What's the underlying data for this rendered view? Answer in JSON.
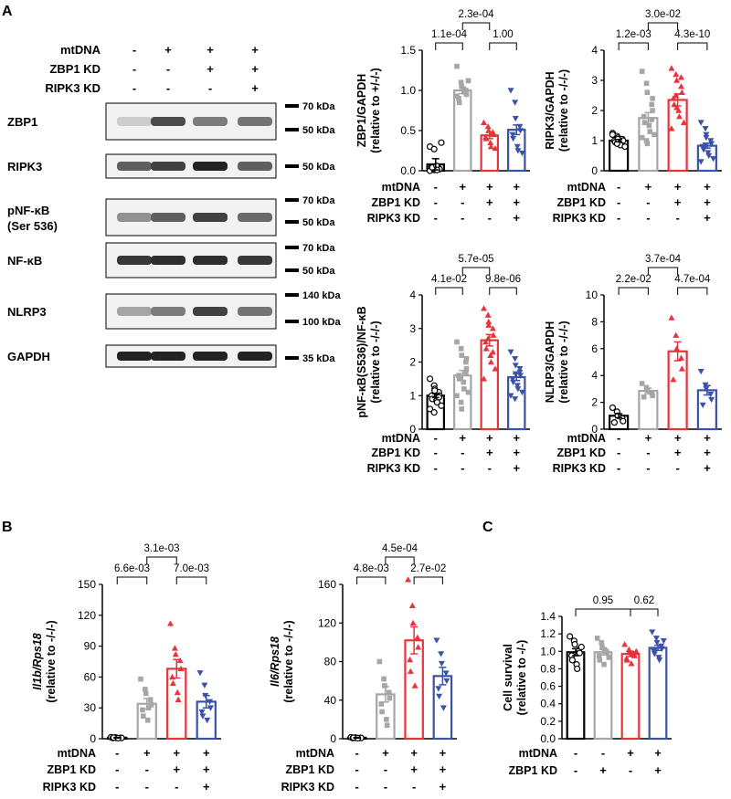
{
  "panel_letters": [
    "A",
    "B",
    "C"
  ],
  "blot": {
    "rows": [
      {
        "label": "mtDNA",
        "signs": [
          "-",
          "+",
          "+",
          "+"
        ]
      },
      {
        "label": "ZBP1 KD",
        "signs": [
          "-",
          "-",
          "+",
          "+"
        ]
      },
      {
        "label": "RIPK3 KD",
        "signs": [
          "-",
          "-",
          "-",
          "+"
        ]
      }
    ],
    "bands": [
      {
        "name": "ZBP1",
        "name2": "",
        "markers": [
          "70 kDa",
          "50 kDa"
        ],
        "intensity": [
          0.15,
          0.8,
          0.55,
          0.6
        ]
      },
      {
        "name": "RIPK3",
        "name2": "",
        "markers": [
          "50 kDa"
        ],
        "intensity": [
          0.7,
          0.85,
          1.0,
          0.7
        ]
      },
      {
        "name": "pNF-κB",
        "name2": "(Ser 536)",
        "markers": [
          "70 kDa",
          "50 kDa"
        ],
        "intensity": [
          0.45,
          0.7,
          0.85,
          0.65
        ]
      },
      {
        "name": "NF-κB",
        "name2": "",
        "markers": [
          "70 kDa",
          "50 kDa"
        ],
        "intensity": [
          0.9,
          0.95,
          0.95,
          0.9
        ]
      },
      {
        "name": "NLRP3",
        "name2": "",
        "markers": [
          "140 kDa",
          "100 kDa"
        ],
        "intensity": [
          0.35,
          0.55,
          0.85,
          0.6
        ]
      },
      {
        "name": "GAPDH",
        "name2": "",
        "markers": [
          "35 kDa"
        ],
        "intensity": [
          1.0,
          1.0,
          1.0,
          1.0
        ]
      }
    ]
  },
  "group_colors": [
    "#000000",
    "#a6a6a6",
    "#e8333a",
    "#3a52a8"
  ],
  "chart_data": [
    {
      "type": "bar",
      "panel": "A",
      "ylabel_lines": [
        "ZBP1/GAPDH",
        "(relative to +/-/-)"
      ],
      "ylim": [
        0,
        1.5
      ],
      "yticks": [
        "0.0",
        "0.5",
        "1.0",
        "1.5"
      ],
      "categories": [
        "g1",
        "g2",
        "g3",
        "g4"
      ],
      "values": [
        0.08,
        1.0,
        0.44,
        0.51
      ],
      "errors": [
        0.07,
        0.04,
        0.04,
        0.06
      ],
      "points": [
        [
          0.0,
          0.01,
          0.02,
          0.03,
          0.02,
          0.05,
          0.04,
          0.06,
          0.01,
          0.35,
          0.3,
          0.27
        ],
        [
          1.3,
          1.1,
          1.05,
          1.0,
          0.95,
          0.9,
          0.85,
          1.02,
          0.98,
          1.12,
          0.93
        ],
        [
          0.6,
          0.55,
          0.5,
          0.48,
          0.45,
          0.42,
          0.4,
          0.35,
          0.3,
          0.28
        ],
        [
          1.0,
          0.85,
          0.65,
          0.55,
          0.5,
          0.45,
          0.4,
          0.3,
          0.25,
          0.22
        ]
      ],
      "markers": [
        "circle-open",
        "square",
        "triangle-up",
        "triangle-down"
      ],
      "comparisons": [
        {
          "from": 0,
          "to": 1,
          "label": "1.1e-04",
          "level": 0
        },
        {
          "from": 2,
          "to": 3,
          "label": "1.00",
          "level": 0
        },
        {
          "from": 1,
          "to": 2,
          "label": "2.3e-04",
          "level": 1
        }
      ],
      "rows": [
        {
          "label": "mtDNA",
          "signs": [
            "-",
            "+",
            "+",
            "+"
          ]
        },
        {
          "label": "ZBP1 KD",
          "signs": [
            "-",
            "-",
            "+",
            "+"
          ]
        },
        {
          "label": "RIPK3 KD",
          "signs": [
            "-",
            "-",
            "-",
            "+"
          ]
        }
      ]
    },
    {
      "type": "bar",
      "panel": "A",
      "ylabel_lines": [
        "RIPK3/GAPDH",
        "(relative to -/-/-)"
      ],
      "ylim": [
        0,
        4
      ],
      "yticks": [
        "0",
        "1",
        "2",
        "3",
        "4"
      ],
      "categories": [
        "g1",
        "g2",
        "g3",
        "g4"
      ],
      "values": [
        1.0,
        1.75,
        2.35,
        0.83
      ],
      "errors": [
        0.04,
        0.18,
        0.2,
        0.08
      ],
      "points": [
        [
          1.25,
          1.15,
          1.1,
          1.05,
          1.0,
          1.0,
          0.95,
          0.9,
          0.85,
          0.8,
          1.2,
          0.9,
          1.05
        ],
        [
          3.3,
          2.9,
          2.6,
          2.2,
          2.0,
          1.8,
          1.6,
          1.5,
          1.3,
          1.2,
          1.1,
          1.0,
          0.9,
          1.7,
          2.4
        ],
        [
          3.4,
          3.2,
          3.0,
          2.8,
          2.6,
          2.4,
          2.2,
          2.0,
          1.8,
          1.6,
          1.4,
          2.5,
          2.1,
          3.1
        ],
        [
          1.6,
          1.4,
          1.2,
          1.0,
          0.9,
          0.8,
          0.7,
          0.6,
          0.5,
          0.4,
          0.3,
          0.85,
          1.1
        ]
      ],
      "markers": [
        "circle-open",
        "square",
        "triangle-up",
        "triangle-down"
      ],
      "comparisons": [
        {
          "from": 0,
          "to": 1,
          "label": "1.2e-03",
          "level": 0
        },
        {
          "from": 2,
          "to": 3,
          "label": "4.3e-10",
          "level": 0
        },
        {
          "from": 1,
          "to": 2,
          "label": "3.0e-02",
          "level": 1
        }
      ],
      "rows": [
        {
          "label": "mtDNA",
          "signs": [
            "-",
            "+",
            "+",
            "+"
          ]
        },
        {
          "label": "ZBP1 KD",
          "signs": [
            "-",
            "-",
            "+",
            "+"
          ]
        },
        {
          "label": "RIPK3 KD",
          "signs": [
            "-",
            "-",
            "-",
            "+"
          ]
        }
      ]
    },
    {
      "type": "bar",
      "panel": "A",
      "ylabel_lines": [
        "pNF-κB(S536)/NF-κB",
        "(relative to -/-/-)"
      ],
      "ylim": [
        0,
        4
      ],
      "yticks": [
        "0",
        "1",
        "2",
        "3",
        "4"
      ],
      "categories": [
        "g1",
        "g2",
        "g3",
        "g4"
      ],
      "values": [
        1.0,
        1.6,
        2.65,
        1.55
      ],
      "errors": [
        0.06,
        0.15,
        0.17,
        0.1
      ],
      "points": [
        [
          1.5,
          1.3,
          1.2,
          1.1,
          1.0,
          1.0,
          0.9,
          0.85,
          0.8,
          0.7,
          0.6,
          0.5,
          1.15,
          0.95
        ],
        [
          2.6,
          2.4,
          2.2,
          2.0,
          1.8,
          1.6,
          1.5,
          1.4,
          1.2,
          1.1,
          1.0,
          0.8,
          0.6,
          1.7,
          2.1
        ],
        [
          3.6,
          3.4,
          3.2,
          3.0,
          2.8,
          2.6,
          2.4,
          2.2,
          2.0,
          1.8,
          1.5,
          2.7,
          3.1,
          2.3
        ],
        [
          2.3,
          2.1,
          1.9,
          1.8,
          1.6,
          1.5,
          1.4,
          1.3,
          1.2,
          1.1,
          1.0,
          0.9,
          1.65,
          1.7
        ]
      ],
      "markers": [
        "circle-open",
        "square",
        "triangle-up",
        "triangle-down"
      ],
      "comparisons": [
        {
          "from": 0,
          "to": 1,
          "label": "4.1e-02",
          "level": 0
        },
        {
          "from": 2,
          "to": 3,
          "label": "9.8e-06",
          "level": 0
        },
        {
          "from": 1,
          "to": 2,
          "label": "5.7e-05",
          "level": 1
        }
      ],
      "rows": [
        {
          "label": "mtDNA",
          "signs": [
            "-",
            "+",
            "+",
            "+"
          ]
        },
        {
          "label": "ZBP1 KD",
          "signs": [
            "-",
            "-",
            "+",
            "+"
          ]
        },
        {
          "label": "RIPK3 KD",
          "signs": [
            "-",
            "-",
            "-",
            "+"
          ]
        }
      ]
    },
    {
      "type": "bar",
      "panel": "A",
      "ylabel_lines": [
        "NLRP3/GAPDH",
        "(relative to -/-/-)"
      ],
      "ylim": [
        0,
        10
      ],
      "yticks": [
        "0",
        "2",
        "4",
        "6",
        "8",
        "10"
      ],
      "categories": [
        "g1",
        "g2",
        "g3",
        "g4"
      ],
      "values": [
        1.0,
        2.85,
        5.8,
        2.9
      ],
      "errors": [
        0.15,
        0.2,
        0.7,
        0.35
      ],
      "points": [
        [
          1.6,
          1.3,
          1.0,
          0.8,
          0.6,
          0.5
        ],
        [
          3.4,
          3.1,
          2.9,
          2.7,
          2.5,
          2.4
        ],
        [
          8.3,
          7.0,
          6.0,
          5.3,
          4.5,
          3.7
        ],
        [
          4.3,
          3.3,
          3.0,
          2.6,
          2.2,
          1.8
        ]
      ],
      "markers": [
        "circle-open",
        "square",
        "triangle-up",
        "triangle-down"
      ],
      "comparisons": [
        {
          "from": 0,
          "to": 1,
          "label": "2.2e-02",
          "level": 0
        },
        {
          "from": 2,
          "to": 3,
          "label": "4.7e-04",
          "level": 0
        },
        {
          "from": 1,
          "to": 2,
          "label": "3.7e-04",
          "level": 1
        }
      ],
      "rows": [
        {
          "label": "mtDNA",
          "signs": [
            "-",
            "+",
            "+",
            "+"
          ]
        },
        {
          "label": "ZBP1 KD",
          "signs": [
            "-",
            "-",
            "+",
            "+"
          ]
        },
        {
          "label": "RIPK3 KD",
          "signs": [
            "-",
            "-",
            "-",
            "+"
          ]
        }
      ]
    },
    {
      "type": "bar",
      "panel": "B",
      "ylabel_lines": [
        "Il1b/Rps18",
        "(relative to -/-/-)"
      ],
      "ylabel_italic_first": true,
      "ylim": [
        0,
        150
      ],
      "yticks": [
        "0",
        "30",
        "60",
        "90",
        "120",
        "150"
      ],
      "categories": [
        "g1",
        "g2",
        "g3",
        "g4"
      ],
      "values": [
        1.0,
        34,
        68,
        36
      ],
      "errors": [
        0.3,
        5,
        9,
        6
      ],
      "points": [
        [
          1.5,
          1.2,
          1.0,
          0.9,
          0.8,
          0.7,
          1.1,
          0.6
        ],
        [
          58,
          48,
          44,
          38,
          33,
          28,
          22,
          18,
          30
        ],
        [
          112,
          88,
          82,
          76,
          68,
          60,
          54,
          45,
          38
        ],
        [
          64,
          52,
          42,
          36,
          30,
          26,
          22,
          18
        ]
      ],
      "markers": [
        "circle-open",
        "square",
        "triangle-up",
        "triangle-down"
      ],
      "comparisons": [
        {
          "from": 0,
          "to": 1,
          "label": "6.6e-03",
          "level": 0
        },
        {
          "from": 2,
          "to": 3,
          "label": "7.0e-03",
          "level": 0
        },
        {
          "from": 1,
          "to": 2,
          "label": "3.1e-03",
          "level": 1
        }
      ],
      "rows": [
        {
          "label": "mtDNA",
          "signs": [
            "-",
            "+",
            "+",
            "+"
          ]
        },
        {
          "label": "ZBP1 KD",
          "signs": [
            "-",
            "-",
            "+",
            "+"
          ]
        },
        {
          "label": "RIPK3 KD",
          "signs": [
            "-",
            "-",
            "-",
            "+"
          ]
        }
      ]
    },
    {
      "type": "bar",
      "panel": "B",
      "ylabel_lines": [
        "Il6/Rps18",
        "(relative to -/-/-)"
      ],
      "ylabel_italic_first": true,
      "ylim": [
        0,
        160
      ],
      "yticks": [
        "0",
        "40",
        "80",
        "120",
        "160"
      ],
      "categories": [
        "g1",
        "g2",
        "g3",
        "g4"
      ],
      "values": [
        1.0,
        46,
        102,
        65
      ],
      "errors": [
        0.3,
        8,
        14,
        9
      ],
      "points": [
        [
          1.5,
          1.2,
          1.0,
          0.9,
          0.8,
          0.7,
          1.1,
          0.6
        ],
        [
          80,
          62,
          55,
          48,
          42,
          36,
          28,
          20,
          14
        ],
        [
          165,
          138,
          120,
          105,
          95,
          82,
          70,
          55
        ],
        [
          102,
          88,
          78,
          68,
          60,
          52,
          44,
          32
        ]
      ],
      "markers": [
        "circle-open",
        "square",
        "triangle-up",
        "triangle-down"
      ],
      "comparisons": [
        {
          "from": 0,
          "to": 1,
          "label": "4.8e-03",
          "level": 0
        },
        {
          "from": 2,
          "to": 3,
          "label": "2.7e-02",
          "level": 0
        },
        {
          "from": 1,
          "to": 2,
          "label": "4.5e-04",
          "level": 1
        }
      ],
      "rows": [
        {
          "label": "mtDNA",
          "signs": [
            "-",
            "+",
            "+",
            "+"
          ]
        },
        {
          "label": "ZBP1 KD",
          "signs": [
            "-",
            "-",
            "+",
            "+"
          ]
        },
        {
          "label": "RIPK3 KD",
          "signs": [
            "-",
            "-",
            "-",
            "+"
          ]
        }
      ]
    },
    {
      "type": "bar",
      "panel": "C",
      "ylabel_lines": [
        "Cell survival",
        "(relative to -/-)"
      ],
      "ylim": [
        0,
        1.4
      ],
      "yticks": [
        "0.0",
        "0.2",
        "0.4",
        "0.6",
        "0.8",
        "1.0",
        "1.2",
        "1.4"
      ],
      "categories": [
        "g1",
        "g2",
        "g3",
        "g4"
      ],
      "values": [
        0.99,
        0.99,
        0.97,
        1.04
      ],
      "errors": [
        0.04,
        0.03,
        0.03,
        0.03
      ],
      "points": [
        [
          1.17,
          1.12,
          1.08,
          1.02,
          0.98,
          0.95,
          0.9,
          0.85,
          0.8,
          1.05
        ],
        [
          1.15,
          1.1,
          1.05,
          1.0,
          0.98,
          0.95,
          0.9,
          0.85,
          1.02,
          0.93
        ],
        [
          1.08,
          1.02,
          1.0,
          0.97,
          0.95,
          0.92,
          0.9,
          0.86,
          0.98,
          1.0
        ],
        [
          1.22,
          1.15,
          1.1,
          1.06,
          1.03,
          1.0,
          0.97,
          0.93,
          0.9,
          1.12
        ]
      ],
      "markers": [
        "circle-open",
        "square",
        "triangle-up",
        "triangle-down"
      ],
      "comparisons": [
        {
          "from": 0,
          "to": 2,
          "label": "0.95",
          "level": 0
        },
        {
          "from": 2,
          "to": 3,
          "label": "0.62",
          "level": 0
        }
      ],
      "rows": [
        {
          "label": "mtDNA",
          "signs": [
            "-",
            "-",
            "+",
            "+"
          ]
        },
        {
          "label": "ZBP1 KD",
          "signs": [
            "-",
            "+",
            "-",
            "+"
          ]
        }
      ]
    }
  ]
}
